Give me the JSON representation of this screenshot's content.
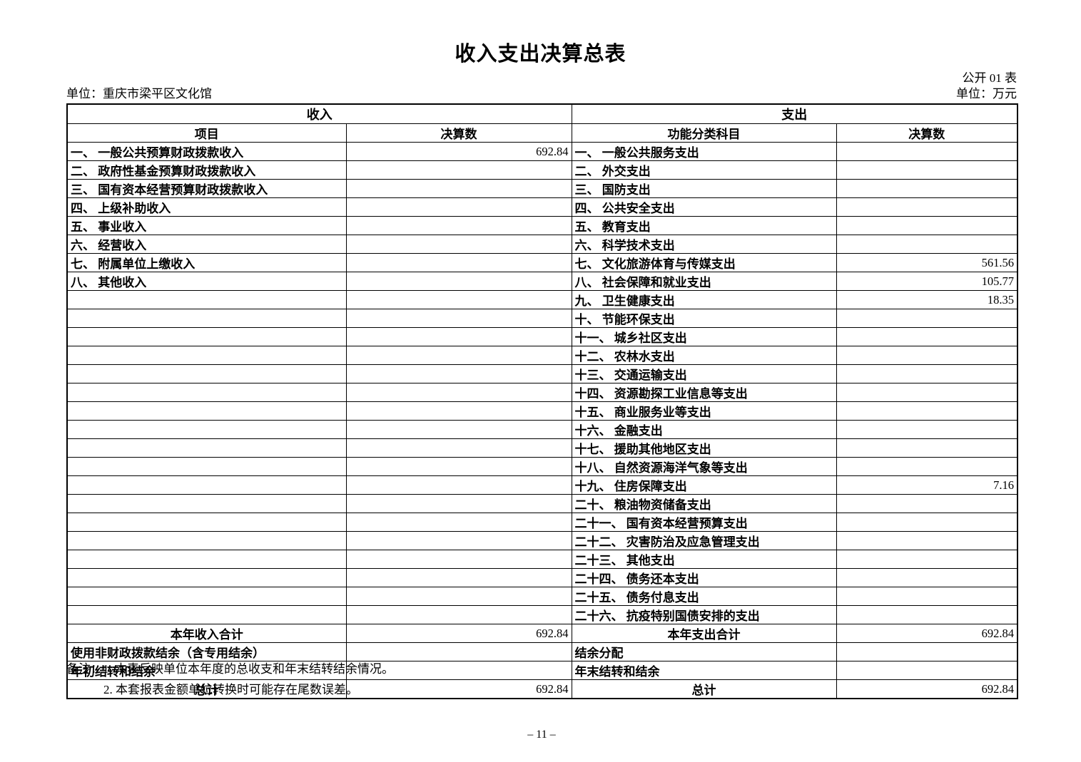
{
  "header": {
    "title": "收入支出决算总表",
    "table_code": "公开 01 表",
    "org": "单位：重庆市梁平区文化馆",
    "unit": "单位：万元"
  },
  "table": {
    "revenue_header": "收入",
    "expenditure_header": "支出",
    "columns": [
      "项目",
      "决算数",
      "功能分类科目",
      "决算数"
    ],
    "rows": [
      [
        "一、 一般公共预算财政拨款收入",
        "692.84",
        "一、 一般公共服务支出",
        ""
      ],
      [
        "二、 政府性基金预算财政拨款收入",
        "",
        "二、 外交支出",
        ""
      ],
      [
        "三、 国有资本经营预算财政拨款收入",
        "",
        "三、 国防支出",
        ""
      ],
      [
        "四、 上级补助收入",
        "",
        "四、 公共安全支出",
        ""
      ],
      [
        "五、 事业收入",
        "",
        "五、 教育支出",
        ""
      ],
      [
        "六、 经营收入",
        "",
        "六、 科学技术支出",
        ""
      ],
      [
        "七、 附属单位上缴收入",
        "",
        "七、 文化旅游体育与传媒支出",
        "561.56"
      ],
      [
        "八、 其他收入",
        "",
        "八、 社会保障和就业支出",
        "105.77"
      ],
      [
        "",
        "",
        "九、 卫生健康支出",
        "18.35"
      ],
      [
        "",
        "",
        "十、 节能环保支出",
        ""
      ],
      [
        "",
        "",
        "十一、 城乡社区支出",
        ""
      ],
      [
        "",
        "",
        "十二、 农林水支出",
        ""
      ],
      [
        "",
        "",
        "十三、 交通运输支出",
        ""
      ],
      [
        "",
        "",
        "十四、 资源勘探工业信息等支出",
        ""
      ],
      [
        "",
        "",
        "十五、 商业服务业等支出",
        ""
      ],
      [
        "",
        "",
        "十六、 金融支出",
        ""
      ],
      [
        "",
        "",
        "十七、 援助其他地区支出",
        ""
      ],
      [
        "",
        "",
        "十八、 自然资源海洋气象等支出",
        ""
      ],
      [
        "",
        "",
        "十九、 住房保障支出",
        "7.16"
      ],
      [
        "",
        "",
        "二十、 粮油物资储备支出",
        ""
      ],
      [
        "",
        "",
        "二十一、 国有资本经营预算支出",
        ""
      ],
      [
        "",
        "",
        "二十二、 灾害防治及应急管理支出",
        ""
      ],
      [
        "",
        "",
        "二十三、 其他支出",
        ""
      ],
      [
        "",
        "",
        "二十四、 债务还本支出",
        ""
      ],
      [
        "",
        "",
        "二十五、 债务付息支出",
        ""
      ],
      [
        "",
        "",
        "二十六、 抗疫特别国债安排的支出",
        ""
      ]
    ],
    "footer": {
      "revenue_total_label": "本年收入合计",
      "revenue_total_value": "692.84",
      "expenditure_total_label": "本年支出合计",
      "expenditure_total_value": "692.84",
      "non_fiscal_label": "使用非财政拨款结余（含专用结余）",
      "non_fiscal_value": "",
      "surplus_distribution_label": "结余分配",
      "surplus_distribution_value": "",
      "begin_carryover_label": "年初结转和结余",
      "begin_carryover_value": "",
      "end_carryover_label": "年末结转和结余",
      "end_carryover_value": "",
      "revenue_grand_total_label": "总计",
      "revenue_grand_total_value": "692.84",
      "expenditure_grand_total_label": "总计",
      "expenditure_grand_total_value": "692.84"
    }
  },
  "notes": {
    "line1": "备注：1. 本表反映单位本年度的总收支和年末结转结余情况。",
    "line2": "2. 本套报表金额单位转换时可能存在尾数误差。"
  },
  "pagefoot": {
    "page_number": "– 11 –"
  }
}
